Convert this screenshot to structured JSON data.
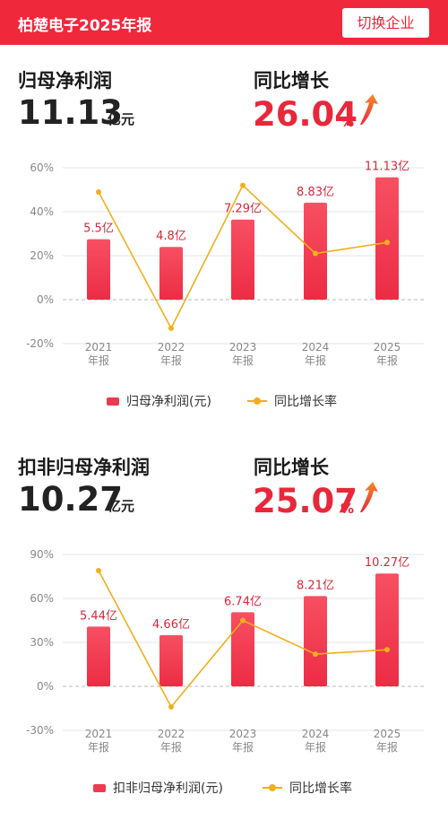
{
  "header": {
    "title": "柏楚电子2025年报",
    "switch_label": "切换企业"
  },
  "sections": [
    {
      "metric_title": "归母净利润",
      "metric_value": "11.13",
      "metric_unit": "亿元",
      "growth_title": "同比增长",
      "growth_value": "26.04",
      "growth_unit": "%",
      "legend_bar": "归母净利润(元)",
      "legend_line": "同比增长率"
    },
    {
      "metric_title": "扣非归母净利润",
      "metric_value": "10.27",
      "metric_unit": "亿元",
      "growth_title": "同比增长",
      "growth_value": "25.07",
      "growth_unit": "%",
      "legend_bar": "扣非归母净利润(元)",
      "legend_line": "同比增长率"
    }
  ],
  "chart_data": [
    {
      "type": "bar",
      "categories": [
        "2021\n年报",
        "2022\n年报",
        "2023\n年报",
        "2024\n年报",
        "2025\n年报"
      ],
      "series": [
        {
          "name": "归母净利润(元)",
          "kind": "bar",
          "values": [
            5.5,
            4.8,
            7.29,
            8.83,
            11.13
          ],
          "labels": [
            "5.5亿",
            "4.8亿",
            "7.29亿",
            "8.83亿",
            "11.13亿"
          ],
          "color": "#ee3a4e"
        },
        {
          "name": "同比增长率",
          "kind": "line",
          "values": [
            49,
            -13,
            52,
            21,
            26
          ],
          "color": "#f2ae1c"
        }
      ],
      "yticks": [
        60,
        40,
        20,
        0,
        -20
      ],
      "ytick_labels": [
        "60%",
        "40%",
        "20%",
        "0%",
        "-20%"
      ],
      "ylim": [
        -20,
        60
      ],
      "bar_scale_max": 12
    },
    {
      "type": "bar",
      "categories": [
        "2021\n年报",
        "2022\n年报",
        "2023\n年报",
        "2024\n年报",
        "2025\n年报"
      ],
      "series": [
        {
          "name": "扣非归母净利润(元)",
          "kind": "bar",
          "values": [
            5.44,
            4.66,
            6.74,
            8.21,
            10.27
          ],
          "labels": [
            "5.44亿",
            "4.66亿",
            "6.74亿",
            "8.21亿",
            "10.27亿"
          ],
          "color": "#ee3a4e"
        },
        {
          "name": "同比增长率",
          "kind": "line",
          "values": [
            79,
            -14,
            45,
            22,
            25
          ],
          "color": "#f2ae1c"
        }
      ],
      "yticks": [
        90,
        60,
        30,
        0,
        -30
      ],
      "ytick_labels": [
        "90%",
        "60%",
        "30%",
        "0%",
        "-30%"
      ],
      "ylim": [
        -30,
        90
      ],
      "bar_scale_max": 12
    }
  ],
  "colors": {
    "brand": "#f0283c",
    "bar": "#ee3a4e",
    "line": "#f2ae1c",
    "growth_text": "#e8283a"
  }
}
